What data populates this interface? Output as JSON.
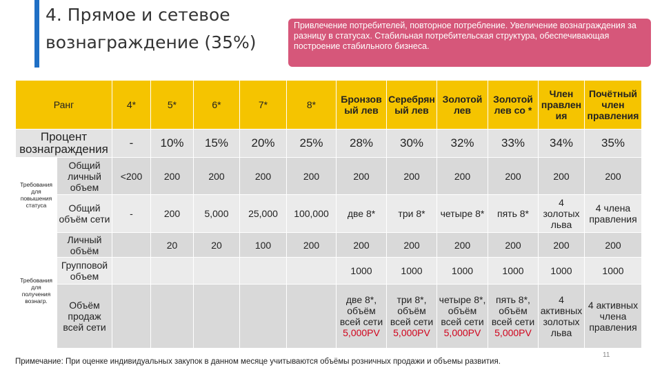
{
  "title": "4. Прямое и сетевое вознаграждение (35%)",
  "callout": "Привлечение потребителей, повторное потребление. Увеличение вознаграждения за разницу в статусах. Стабильная потребительская структура, обеспечивающая построение стабильного бизнеса.",
  "table": {
    "header": [
      "Ранг",
      "4*",
      "5*",
      "6*",
      "7*",
      "8*",
      "Бронзовый лев",
      "Серебряный лев",
      "Золотой лев",
      "Золотой лев со *",
      "Член правления",
      "Почётный член правления"
    ],
    "percent_row": [
      "Процент вознаграждения",
      "-",
      "10%",
      "15%",
      "20%",
      "25%",
      "28%",
      "30%",
      "32%",
      "33%",
      "34%",
      "35%"
    ],
    "groups": [
      {
        "label": "Требования для повышения статуса",
        "rows": [
          {
            "label": "Общий личный объем",
            "cells": [
              "<200",
              "200",
              "200",
              "200",
              "200",
              "200",
              "200",
              "200",
              "200",
              "200",
              "200"
            ]
          },
          {
            "label": "Общий объём сети",
            "cells": [
              "-",
              "200",
              "5,000",
              "25,000",
              "100,000",
              "две 8*",
              "три 8*",
              "четыре 8*",
              "пять 8*",
              "4 золотых льва",
              "4 члена правления"
            ]
          }
        ]
      },
      {
        "label": "Требования для получения вознагр.",
        "rows": [
          {
            "label": "Личный объём",
            "cells": [
              null,
              "20",
              "20",
              "100",
              "200",
              "200",
              "200",
              "200",
              "200",
              "200",
              "200"
            ]
          },
          {
            "label": "Групповой объем",
            "cells": [
              null,
              null,
              null,
              null,
              null,
              "1000",
              "1000",
              "1000",
              "1000",
              "1000",
              "1000"
            ]
          },
          {
            "label": "Объём продаж всей сети",
            "cells": [
              null,
              null,
              null,
              null,
              null,
              {
                "text": "две 8*, объём всей сети",
                "pv": "5,000PV"
              },
              {
                "text": "три 8*, объём всей сети",
                "pv": "5,000PV"
              },
              {
                "text": "четыре 8*, объём всей сети",
                "pv": "5,000PV"
              },
              {
                "text": "пять 8*, объём всей сети",
                "pv": "5,000PV"
              },
              "4 активных золотых льва",
              "4 активных члена правления"
            ]
          }
        ]
      }
    ]
  },
  "note": "Примечание: При оценке индивидуальных закупок в данном месяце учитываются объёмы розничных продажи и объемы развития.",
  "page_number": "11"
}
